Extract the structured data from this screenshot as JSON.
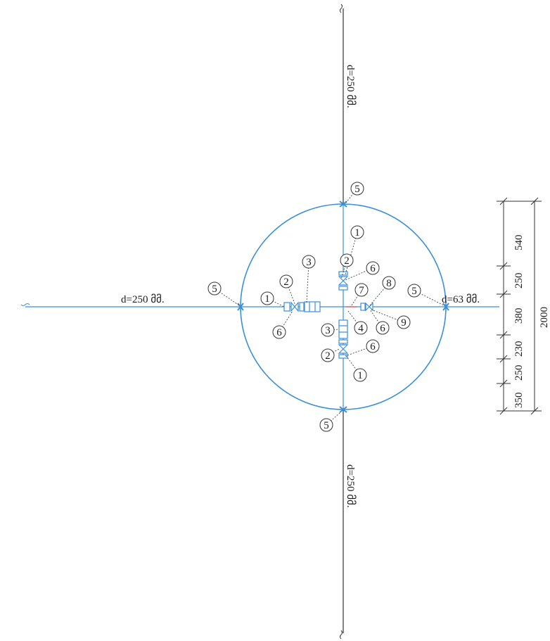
{
  "pipe_labels": {
    "north": "d=250 მმ.",
    "west": "d=250 მმ.",
    "east": "d=63 მმ.",
    "south": "d=250 მმ."
  },
  "callouts": [
    "5",
    "1",
    "2",
    "3",
    "6",
    "1",
    "2",
    "6",
    "7",
    "8",
    "5",
    "9",
    "6",
    "4",
    "3",
    "6",
    "2",
    "1",
    "5",
    "5"
  ],
  "dimensions": {
    "segments": [
      "540",
      "250",
      "380",
      "230",
      "250",
      "350"
    ],
    "total": "2000"
  },
  "colors": {
    "pipe_blue": "#3a8fd6",
    "line_dark": "#333333",
    "accent_red": "#d33"
  }
}
